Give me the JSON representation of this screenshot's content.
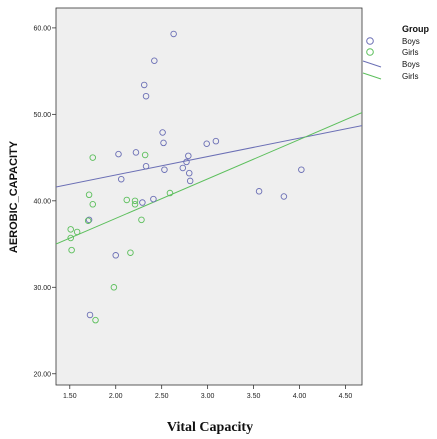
{
  "chart_data": {
    "type": "scatter",
    "xlabel": "Vital Capacity",
    "ylabel": "AEROBIC_CAPACITY",
    "xlim": [
      1.35,
      4.68
    ],
    "ylim": [
      18.7,
      62.3
    ],
    "x_ticks": [
      "1.50",
      "2.00",
      "2.50",
      "3.00",
      "3.50",
      "4.00",
      "4.50"
    ],
    "y_ticks": [
      "20.00",
      "30.00",
      "40.00",
      "50.00",
      "60.00"
    ],
    "grid": false,
    "legend_position": "top-right",
    "colors": {
      "boys": "#6b6fb5",
      "girls": "#5cbf5c",
      "background": "#efefef"
    },
    "legend": {
      "title": "Group",
      "items": [
        {
          "marker": "circle",
          "series": "boys",
          "label": "Boys"
        },
        {
          "marker": "circle",
          "series": "girls",
          "label": "Girls"
        },
        {
          "marker": "line",
          "series": "boys",
          "label": "Boys"
        },
        {
          "marker": "line",
          "series": "girls",
          "label": "Girls"
        }
      ]
    },
    "series": [
      {
        "name": "Boys",
        "points": [
          [
            1.71,
            37.8
          ],
          [
            1.72,
            26.8
          ],
          [
            2.0,
            33.7
          ],
          [
            2.03,
            45.4
          ],
          [
            2.06,
            42.5
          ],
          [
            2.22,
            45.6
          ],
          [
            2.29,
            39.8
          ],
          [
            2.31,
            53.4
          ],
          [
            2.33,
            52.1
          ],
          [
            2.33,
            44.0
          ],
          [
            2.41,
            40.2
          ],
          [
            2.42,
            56.2
          ],
          [
            2.51,
            47.9
          ],
          [
            2.52,
            46.7
          ],
          [
            2.53,
            43.6
          ],
          [
            2.63,
            59.3
          ],
          [
            2.73,
            43.8
          ],
          [
            2.77,
            44.5
          ],
          [
            2.79,
            45.2
          ],
          [
            2.8,
            43.2
          ],
          [
            2.81,
            42.3
          ],
          [
            2.99,
            46.6
          ],
          [
            3.09,
            46.9
          ],
          [
            3.56,
            41.1
          ],
          [
            3.83,
            40.5
          ],
          [
            4.02,
            43.6
          ]
        ],
        "fit_line": {
          "x": [
            1.35,
            4.68
          ],
          "y": [
            41.6,
            48.7
          ]
        }
      },
      {
        "name": "Girls",
        "points": [
          [
            1.51,
            36.7
          ],
          [
            1.51,
            35.7
          ],
          [
            1.52,
            34.3
          ],
          [
            1.58,
            36.4
          ],
          [
            1.7,
            37.7
          ],
          [
            1.71,
            40.7
          ],
          [
            1.75,
            39.6
          ],
          [
            1.75,
            45.0
          ],
          [
            1.78,
            26.2
          ],
          [
            1.98,
            30.0
          ],
          [
            2.12,
            40.1
          ],
          [
            2.16,
            34.0
          ],
          [
            2.21,
            40.0
          ],
          [
            2.21,
            39.6
          ],
          [
            2.28,
            37.8
          ],
          [
            2.32,
            45.3
          ],
          [
            2.59,
            40.9
          ]
        ],
        "fit_line": {
          "x": [
            1.35,
            4.68
          ],
          "y": [
            35.0,
            50.2
          ]
        }
      }
    ]
  }
}
